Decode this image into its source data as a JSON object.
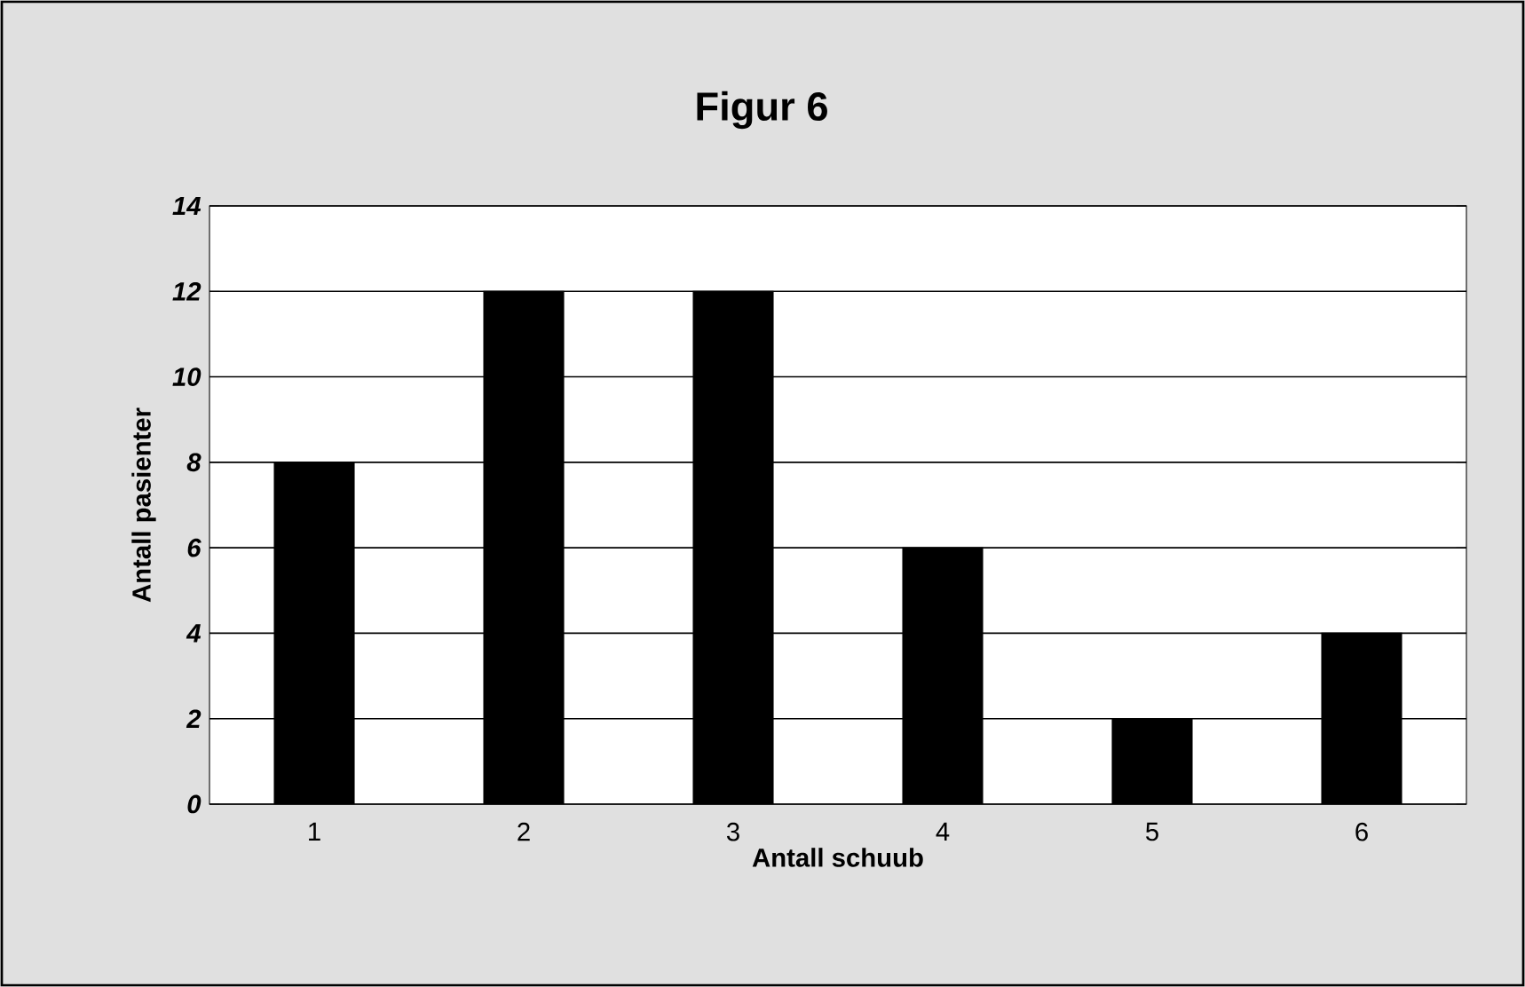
{
  "chart_data": {
    "type": "bar",
    "title": "Figur 6",
    "xlabel": "Antall schuub",
    "ylabel": "Antall pasienter",
    "categories": [
      "1",
      "2",
      "3",
      "4",
      "5",
      "6"
    ],
    "values": [
      8,
      12,
      12,
      6,
      2,
      4
    ],
    "color": "#000000",
    "ylim": [
      0,
      14
    ],
    "yticks": [
      0,
      2,
      4,
      6,
      8,
      10,
      12,
      14
    ],
    "grid": "y"
  }
}
